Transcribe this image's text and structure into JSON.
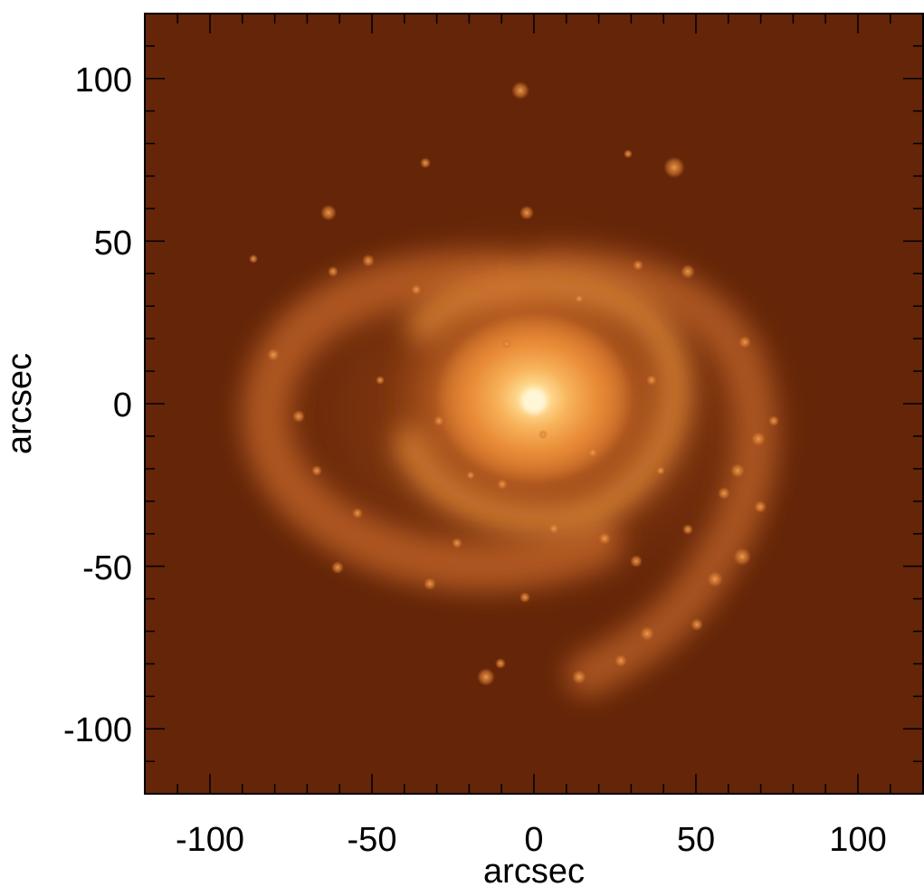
{
  "image": {
    "subject": "face-on spiral galaxy",
    "colormap": {
      "background": "#642508",
      "arms": "#d8782a",
      "inner_disk": "#f1a043",
      "core": "#fff3c8"
    }
  },
  "axes": {
    "xlabel": "arcsec",
    "ylabel": "arcsec",
    "xlim": [
      -120,
      120
    ],
    "ylim": [
      -120,
      120
    ],
    "x_tick_labels": [
      "-100",
      "-50",
      "0",
      "50",
      "100"
    ],
    "y_tick_labels": [
      "100",
      "50",
      "0",
      "-50",
      "-100"
    ]
  }
}
